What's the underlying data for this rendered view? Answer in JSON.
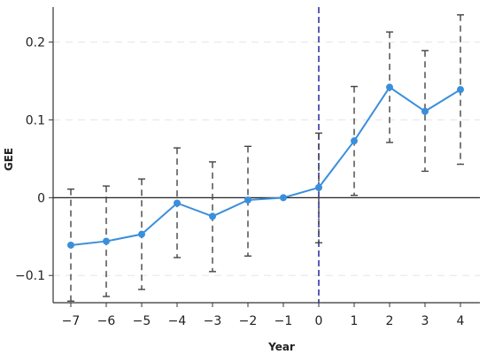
{
  "chart_data": {
    "type": "line",
    "xlabel": "Year",
    "ylabel": "GEE",
    "x": [
      -7,
      -6,
      -5,
      -4,
      -3,
      -2,
      -1,
      0,
      1,
      2,
      3,
      4
    ],
    "x_tick_labels": [
      "−7",
      "−6",
      "−5",
      "−4",
      "−3",
      "−2",
      "−1",
      "0",
      "1",
      "2",
      "3",
      "4"
    ],
    "y_ticks": [
      -0.1,
      0,
      0.1,
      0.2
    ],
    "y_tick_labels": [
      "−0.1",
      "0",
      "0.1",
      "0.2"
    ],
    "ylim": [
      -0.135,
      0.245
    ],
    "series": [
      {
        "values": [
          -0.061,
          -0.056,
          -0.047,
          -0.007,
          -0.024,
          -0.003,
          0.0,
          0.013,
          0.073,
          0.142,
          0.111,
          0.139
        ],
        "ci_lower": [
          -0.133,
          -0.127,
          -0.118,
          -0.077,
          -0.095,
          -0.075,
          0.0,
          -0.058,
          0.003,
          0.071,
          0.034,
          0.043
        ],
        "ci_upper": [
          0.011,
          0.015,
          0.024,
          0.064,
          0.046,
          0.066,
          0.0,
          0.083,
          0.143,
          0.213,
          0.189,
          0.235
        ],
        "color": "#3a8fdc"
      }
    ],
    "reference_line_x": 0,
    "reference_line_color": "#3333aa",
    "zero_line_y": 0,
    "errorbar_color": "#444444",
    "grid": "horizontal-dashed"
  }
}
